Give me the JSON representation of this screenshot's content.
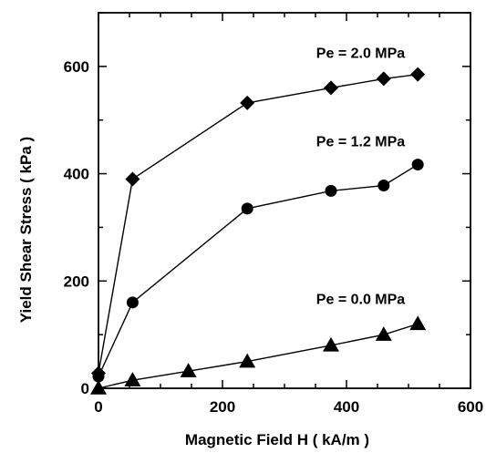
{
  "chart_data": {
    "type": "line",
    "xlabel": "Magnetic Field H ( kA/m )",
    "ylabel": "Yield Shear Stress ( kPa )",
    "xlim": [
      0,
      600
    ],
    "ylim": [
      0,
      700
    ],
    "xticks": [
      0,
      200,
      400,
      600
    ],
    "yticks": [
      0,
      200,
      400,
      600
    ],
    "xtick_labels": [
      "0",
      "200",
      "400",
      "600"
    ],
    "ytick_labels": [
      "0",
      "200",
      "400",
      "600"
    ],
    "grid": false,
    "legend": "none",
    "series": [
      {
        "name": "Pe = 2.0 MPa",
        "marker": "diamond",
        "x": [
          0,
          55,
          240,
          375,
          460,
          515
        ],
        "y": [
          28,
          390,
          532,
          560,
          577,
          585
        ]
      },
      {
        "name": "Pe = 1.2 MPa",
        "marker": "circle",
        "x": [
          0,
          55,
          240,
          375,
          460,
          515
        ],
        "y": [
          22,
          160,
          335,
          368,
          378,
          417
        ]
      },
      {
        "name": "Pe = 0.0 MPa",
        "marker": "triangle",
        "x": [
          0,
          55,
          145,
          240,
          375,
          460,
          515
        ],
        "y": [
          0,
          15,
          32,
          50,
          80,
          100,
          120
        ]
      }
    ]
  }
}
